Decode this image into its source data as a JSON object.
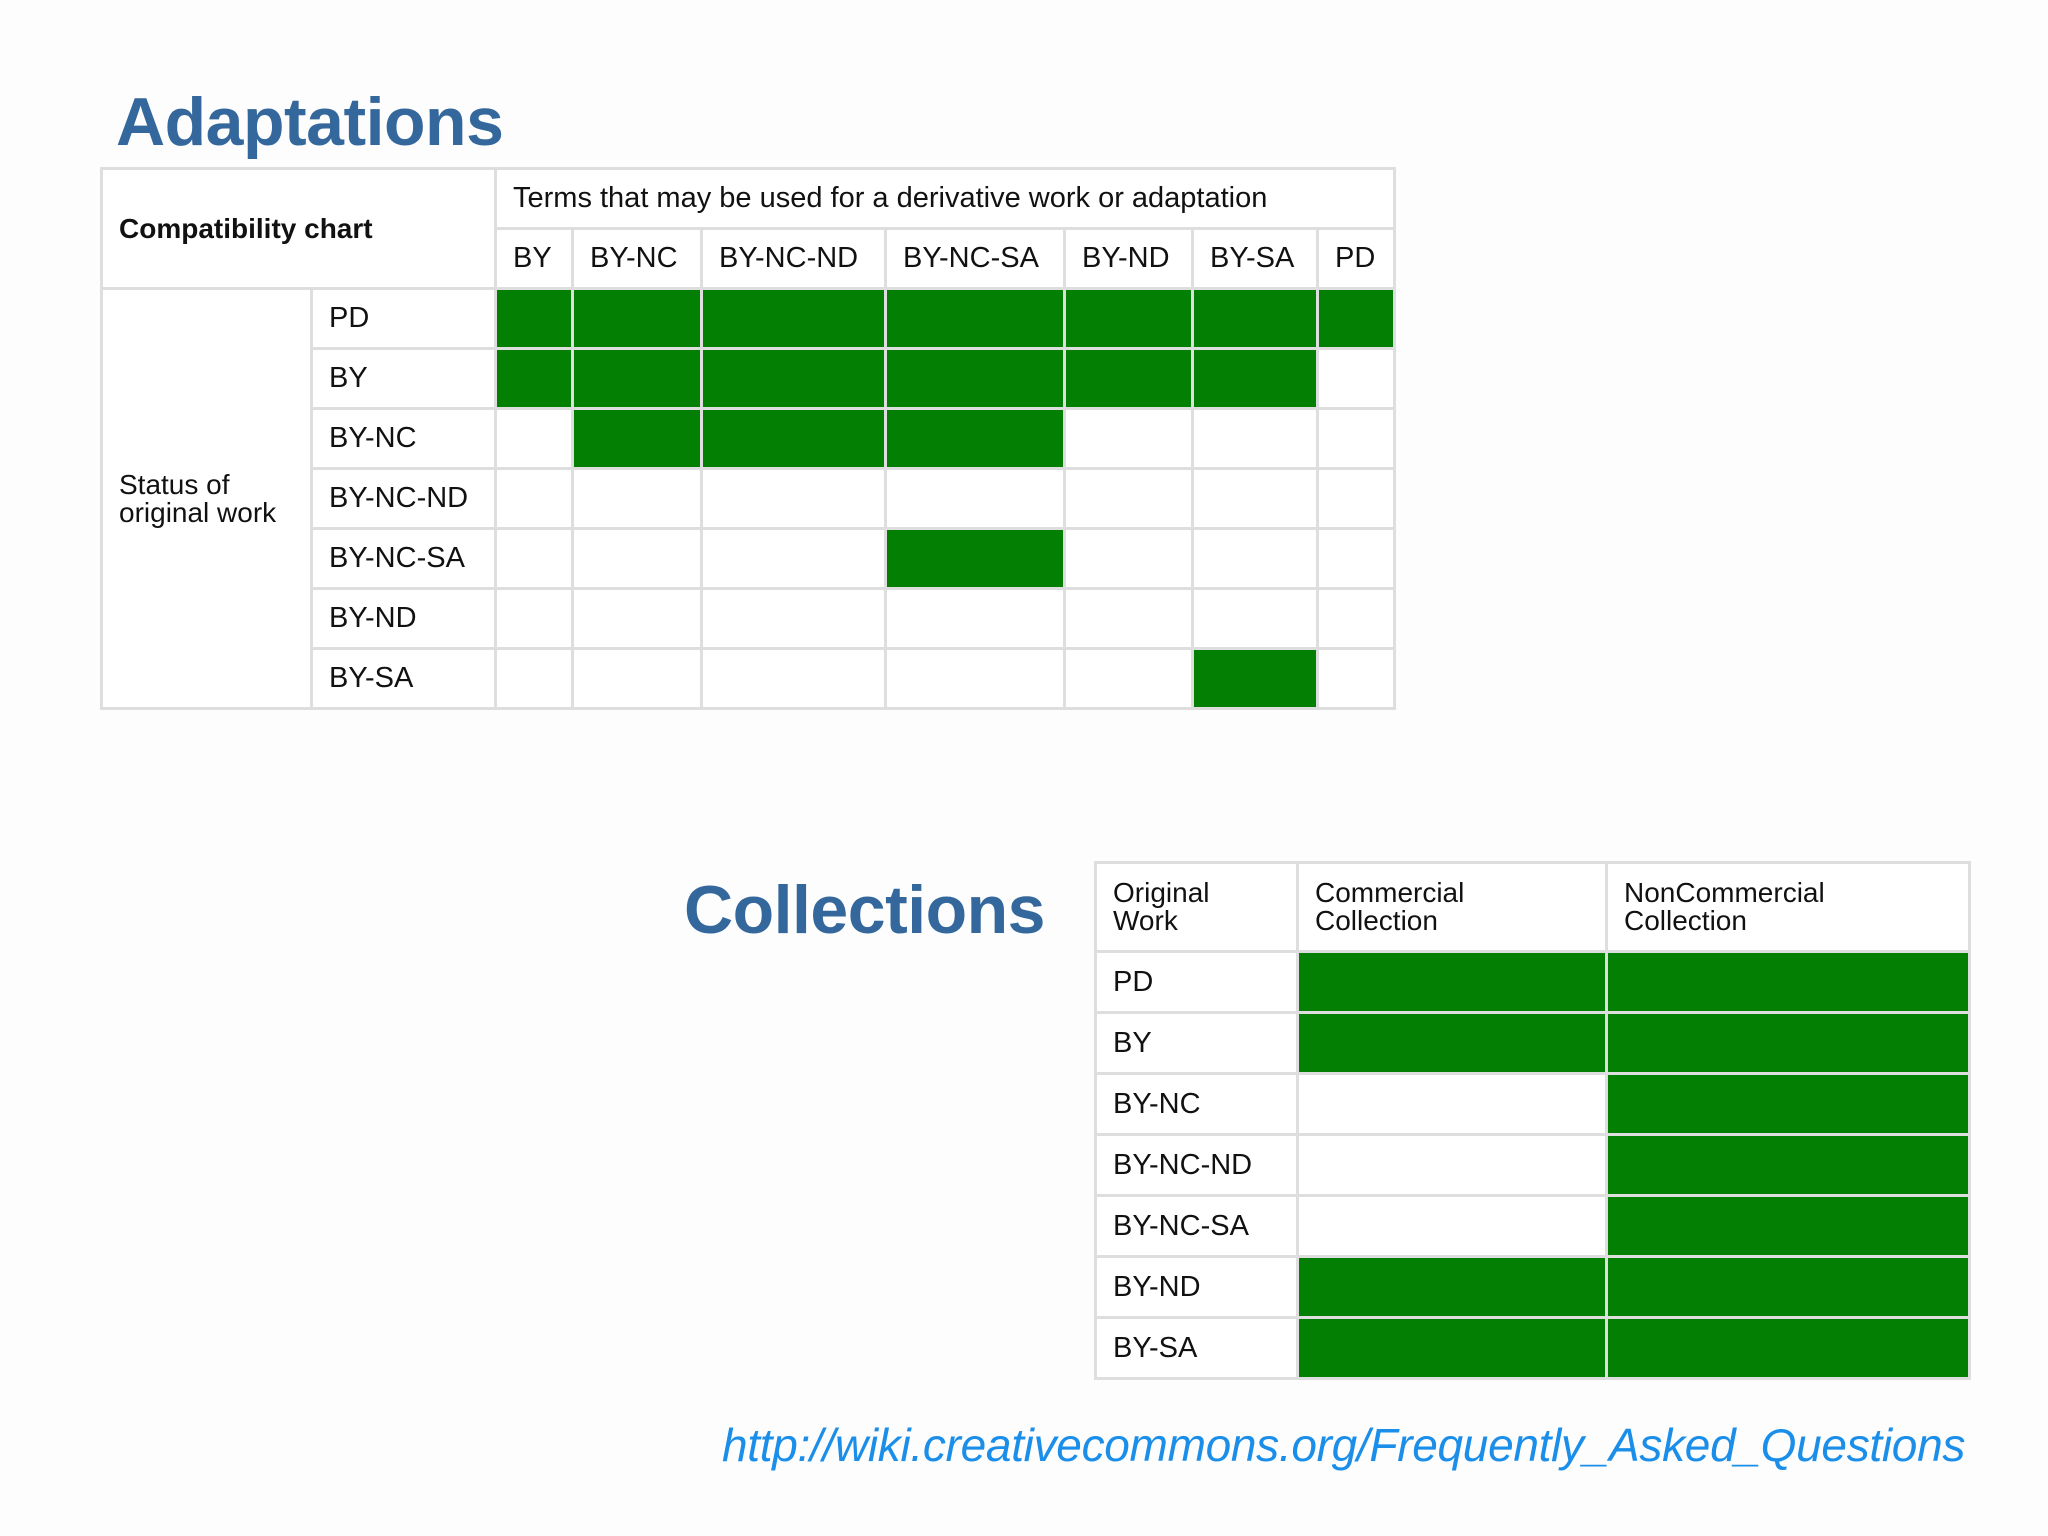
{
  "adaptations": {
    "title": "Adaptations",
    "corner_label": "Compatibility chart",
    "header_label": "Terms that may be used for a derivative work or adaptation",
    "row_group_label": "Status of original work",
    "columns": [
      "BY",
      "BY-NC",
      "BY-NC-ND",
      "BY-NC-SA",
      "BY-ND",
      "BY-SA",
      "PD"
    ],
    "rows": [
      "PD",
      "BY",
      "BY-NC",
      "BY-NC-ND",
      "BY-NC-SA",
      "BY-ND",
      "BY-SA"
    ]
  },
  "collections": {
    "title": "Collections",
    "headers": [
      "Original Work",
      "Commercial Collection",
      "NonCommercial Collection"
    ],
    "rows": [
      "PD",
      "BY",
      "BY-NC",
      "BY-NC-ND",
      "BY-NC-SA",
      "BY-ND",
      "BY-SA"
    ]
  },
  "source_url": "http://wiki.creativecommons.org/Frequently_Asked_Questions",
  "colors": {
    "compatible": "#037f04",
    "incompatible": "#ffffff",
    "title": "#34679b",
    "link": "#1a8ee8",
    "grid": "#dedede"
  },
  "chart_data": [
    {
      "type": "heatmap",
      "title": "Adaptations",
      "xlabel": "Terms that may be used for a derivative work or adaptation",
      "ylabel": "Status of original work",
      "x": [
        "BY",
        "BY-NC",
        "BY-NC-ND",
        "BY-NC-SA",
        "BY-ND",
        "BY-SA",
        "PD"
      ],
      "y": [
        "PD",
        "BY",
        "BY-NC",
        "BY-NC-ND",
        "BY-NC-SA",
        "BY-ND",
        "BY-SA"
      ],
      "values": [
        [
          1,
          1,
          1,
          1,
          1,
          1,
          1
        ],
        [
          1,
          1,
          1,
          1,
          1,
          1,
          0
        ],
        [
          0,
          1,
          1,
          1,
          0,
          0,
          0
        ],
        [
          0,
          0,
          0,
          0,
          0,
          0,
          0
        ],
        [
          0,
          0,
          0,
          1,
          0,
          0,
          0
        ],
        [
          0,
          0,
          0,
          0,
          0,
          0,
          0
        ],
        [
          0,
          0,
          0,
          0,
          0,
          1,
          0
        ]
      ],
      "legend": {
        "1": "compatible (green)",
        "0": "not compatible (white)"
      }
    },
    {
      "type": "heatmap",
      "title": "Collections",
      "xlabel": "",
      "ylabel": "Original Work",
      "x": [
        "Commercial Collection",
        "NonCommercial Collection"
      ],
      "y": [
        "PD",
        "BY",
        "BY-NC",
        "BY-NC-ND",
        "BY-NC-SA",
        "BY-ND",
        "BY-SA"
      ],
      "values": [
        [
          1,
          1
        ],
        [
          1,
          1
        ],
        [
          0,
          1
        ],
        [
          0,
          1
        ],
        [
          0,
          1
        ],
        [
          1,
          1
        ],
        [
          1,
          1
        ]
      ],
      "legend": {
        "1": "allowed (green)",
        "0": "not allowed (white)"
      }
    }
  ]
}
